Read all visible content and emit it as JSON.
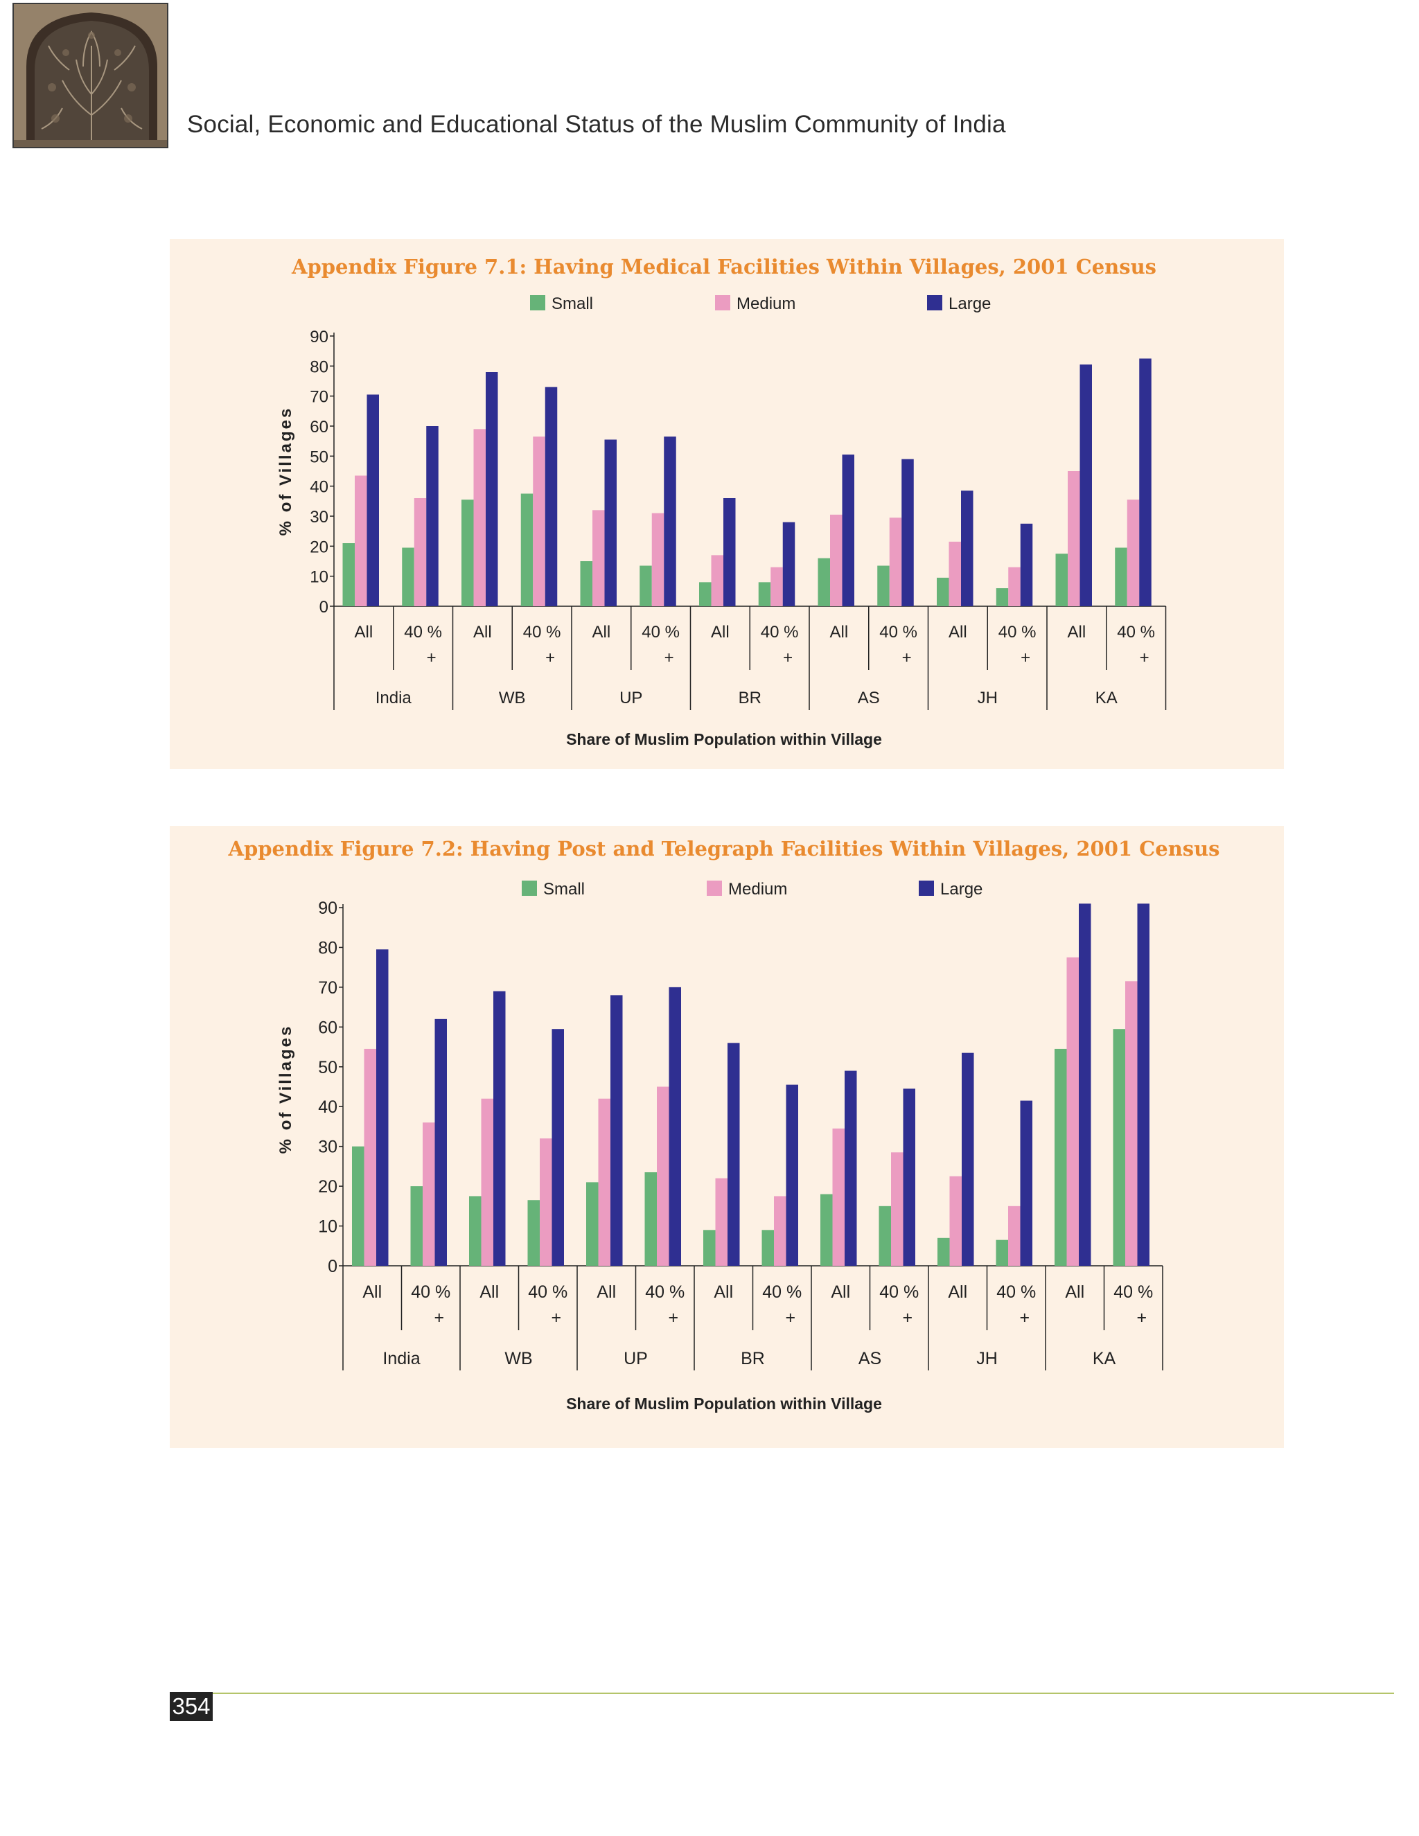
{
  "header": {
    "title": "Social, Economic and Educational Status of the Muslim Community of India"
  },
  "colors": {
    "small": "#66b378",
    "medium": "#eb9cc1",
    "large": "#2f2f91",
    "title": "#e98a2f",
    "panel_bg": "#fdf1e4"
  },
  "icons": {
    "header_image": "carved-stone-window-jali-image"
  },
  "footer": {
    "page_number": "354"
  },
  "chart_data": [
    {
      "type": "bar",
      "title": "Appendix Figure 7.1: Having Medical Facilities Within Villages, 2001 Census",
      "xlabel": "Share of Muslim Population within Village",
      "ylabel": "% of Villages",
      "ylim": [
        0,
        90
      ],
      "yticks": [
        "0",
        "10",
        "20",
        "30",
        "40",
        "50",
        "60",
        "70",
        "80",
        "90"
      ],
      "grid": false,
      "legend_position": "top",
      "groups": [
        "India",
        "WB",
        "UP",
        "BR",
        "AS",
        "JH",
        "KA"
      ],
      "sub_categories": [
        {
          "line1": "All",
          "line2": ""
        },
        {
          "line1": "40 %",
          "line2": "+"
        }
      ],
      "series": [
        {
          "name": "Small",
          "values": [
            21,
            19.5,
            35.5,
            37.5,
            15,
            13.5,
            8,
            8,
            16,
            13.5,
            9.5,
            6,
            17.5,
            19.5
          ]
        },
        {
          "name": "Medium",
          "values": [
            43.5,
            36,
            59,
            56.5,
            32,
            31,
            17,
            13,
            30.5,
            29.5,
            21.5,
            13,
            45,
            35.5
          ]
        },
        {
          "name": "Large",
          "values": [
            70.5,
            60,
            78,
            73,
            55.5,
            56.5,
            36,
            28,
            50.5,
            49,
            38.5,
            27.5,
            80.5,
            82.5
          ]
        }
      ]
    },
    {
      "type": "bar",
      "title": "Appendix Figure 7.2: Having Post and Telegraph Facilities Within Villages, 2001 Census",
      "xlabel": "Share of Muslim Population within Village",
      "ylabel": "% of Villages",
      "ylim": [
        0,
        90
      ],
      "yticks": [
        "0",
        "10",
        "20",
        "30",
        "40",
        "50",
        "60",
        "70",
        "80",
        "90"
      ],
      "grid": false,
      "legend_position": "top",
      "groups": [
        "India",
        "WB",
        "UP",
        "BR",
        "AS",
        "JH",
        "KA"
      ],
      "sub_categories": [
        {
          "line1": "All",
          "line2": ""
        },
        {
          "line1": "40 %",
          "line2": "+"
        }
      ],
      "series": [
        {
          "name": "Small",
          "values": [
            30,
            20,
            17.5,
            16.5,
            21,
            23.5,
            9,
            9,
            18,
            15,
            7,
            6.5,
            54.5,
            59.5
          ]
        },
        {
          "name": "Medium",
          "values": [
            54.5,
            36,
            42,
            32,
            42,
            45,
            22,
            17.5,
            34.5,
            28.5,
            22.5,
            15,
            77.5,
            71.5
          ]
        },
        {
          "name": "Large",
          "values": [
            79.5,
            62,
            69,
            59.5,
            68,
            70,
            56,
            45.5,
            49,
            44.5,
            53.5,
            41.5,
            91,
            91
          ]
        }
      ]
    }
  ]
}
